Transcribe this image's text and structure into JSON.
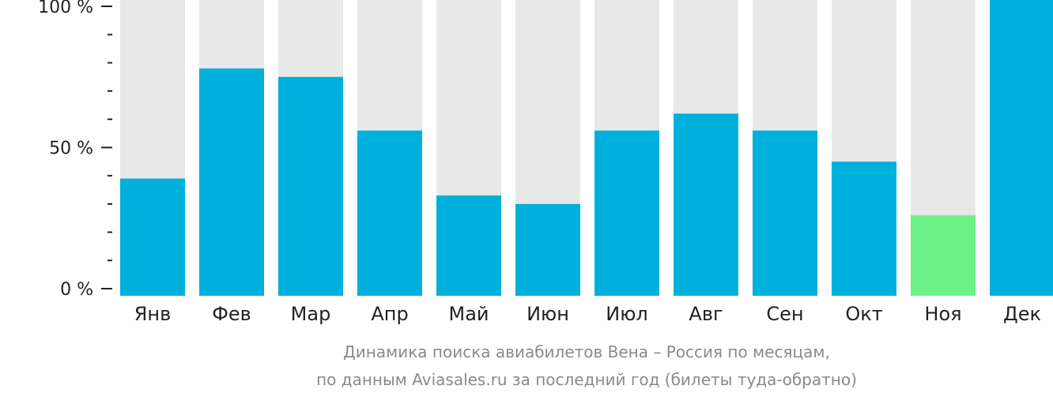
{
  "chart_data": {
    "type": "bar",
    "categories": [
      "Янв",
      "Фев",
      "Мар",
      "Апр",
      "Май",
      "Июн",
      "Июл",
      "Авг",
      "Сен",
      "Окт",
      "Ноя",
      "Дек"
    ],
    "values": [
      39,
      78,
      75,
      56,
      33,
      30,
      56,
      62,
      56,
      45,
      26,
      100
    ],
    "ylim": [
      0,
      100
    ],
    "yticks": [
      {
        "value": 0,
        "label": "0 %"
      },
      {
        "value": 50,
        "label": "50 %"
      },
      {
        "value": 100,
        "label": "100 %"
      }
    ],
    "minor_tick_step": 10,
    "highlight_index": 10,
    "colors": {
      "bar": "#00b0dc",
      "highlight": "#6cf287",
      "background_bar": "#e8e8e8",
      "axis": "#222222"
    },
    "caption_lines": [
      "Динамика поиска авиабилетов Вена – Россия по месяцам,",
      "по данным Aviasales.ru за последний год (билеты туда-обратно)"
    ]
  }
}
